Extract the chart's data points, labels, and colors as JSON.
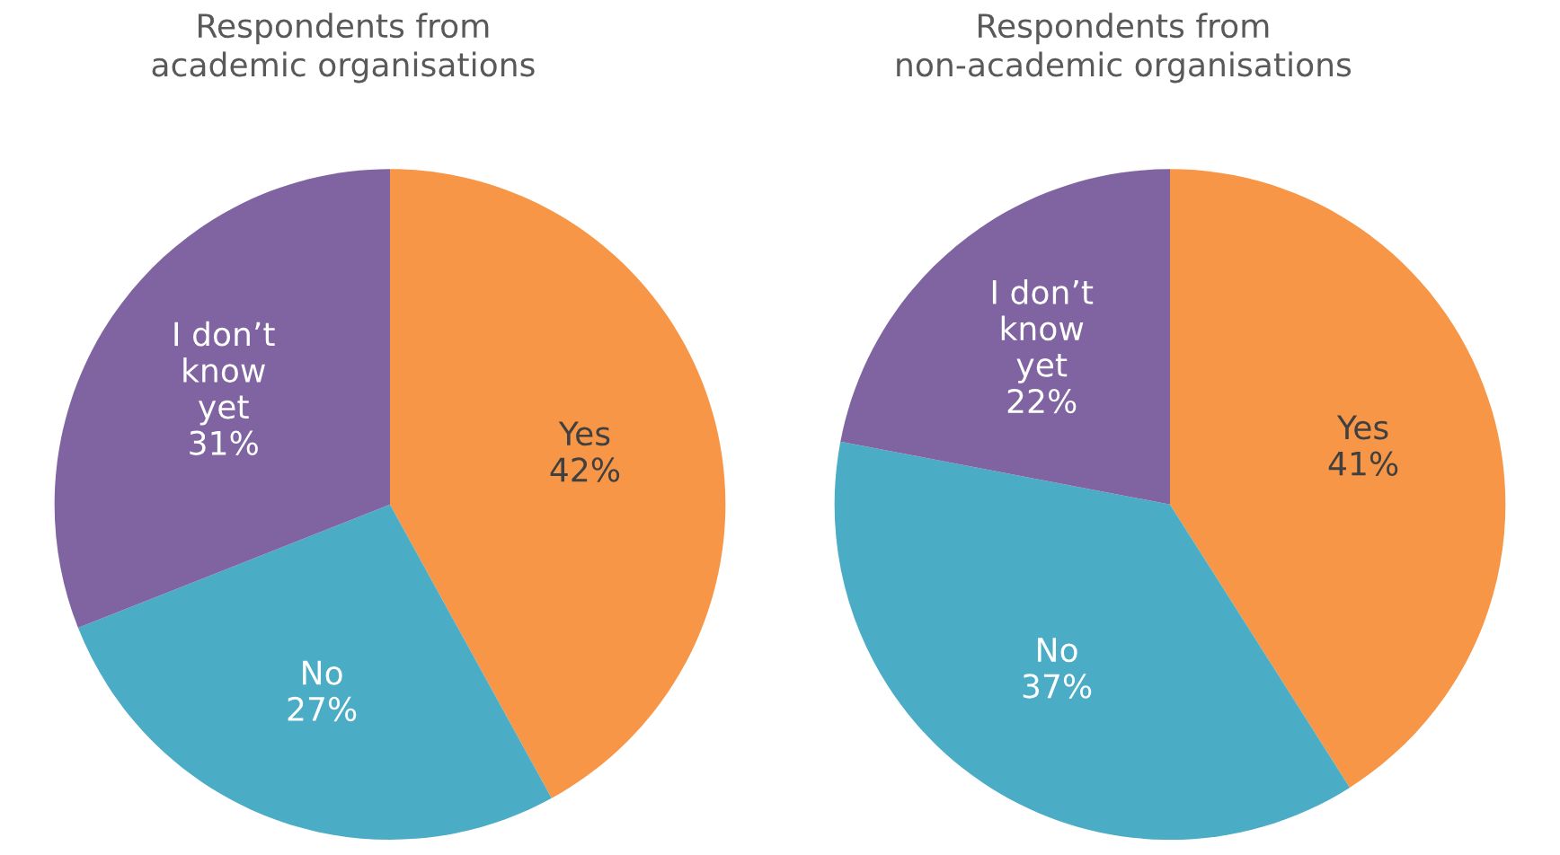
{
  "chart_data": [
    {
      "type": "pie",
      "title": "Respondents from\nacademic organisations",
      "categories": [
        "Yes",
        "No",
        "I don’t\nknow\nyet"
      ],
      "values": [
        42,
        27,
        31
      ],
      "value_labels": [
        "42%",
        "27%",
        "31%"
      ],
      "colors": [
        "#f79646",
        "#4bacc6",
        "#8064a2"
      ],
      "legend": false
    },
    {
      "type": "pie",
      "title": "Respondents from\nnon-academic organisations",
      "categories": [
        "Yes",
        "No",
        "I don’t\nknow\nyet"
      ],
      "values": [
        41,
        37,
        22
      ],
      "value_labels": [
        "41%",
        "37%",
        "22%"
      ],
      "colors": [
        "#f79646",
        "#4bacc6",
        "#8064a2"
      ],
      "legend": false
    }
  ]
}
